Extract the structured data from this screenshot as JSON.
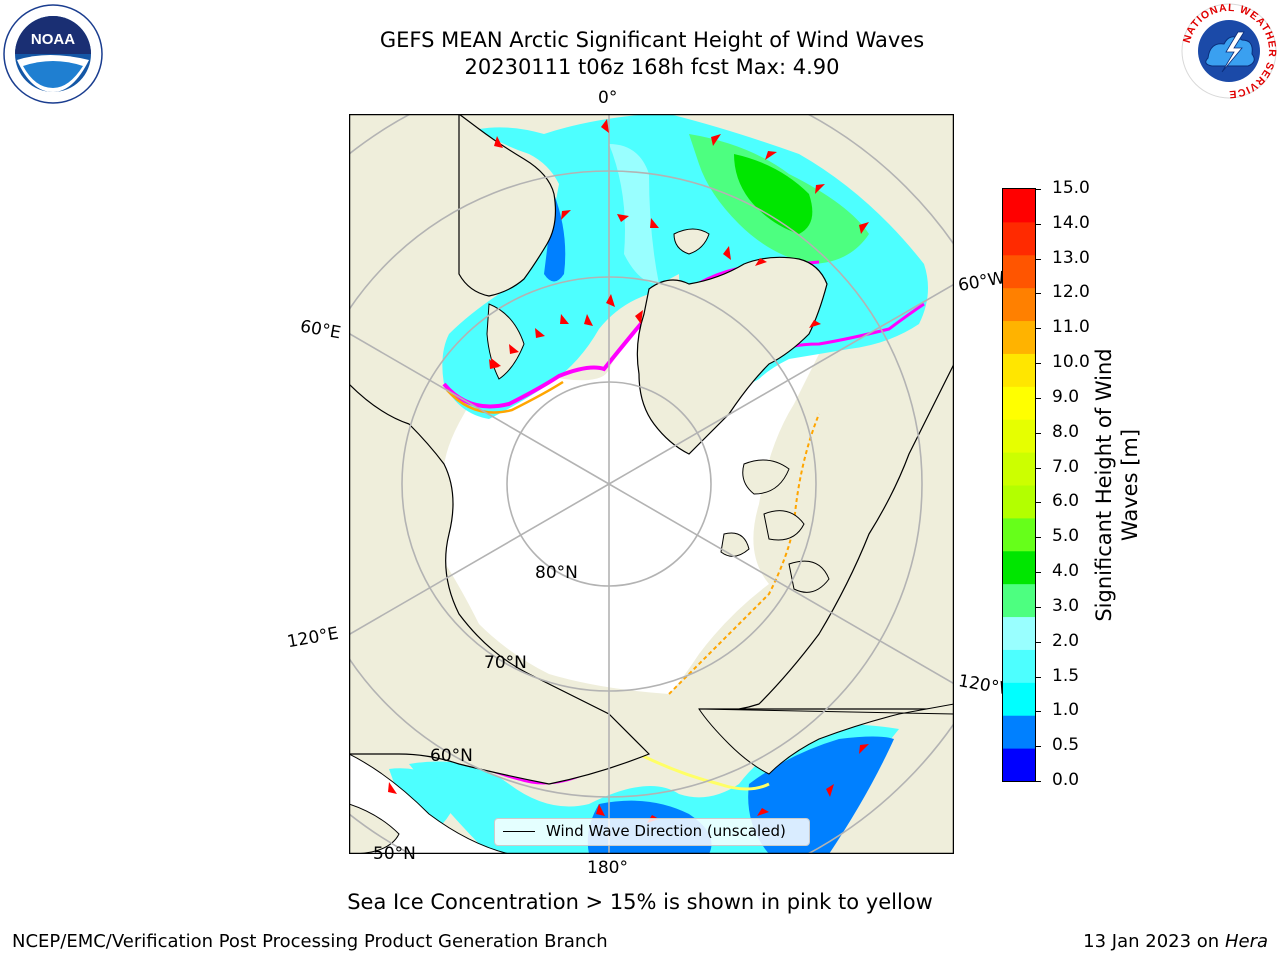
{
  "title": {
    "line1": "GEFS MEAN Arctic Significant Height of Wind Waves",
    "line2": "20230111 t06z 168h fcst   Max: 4.90"
  },
  "logos": {
    "noaa": "NOAA",
    "nws_ring": "NATIONAL WEATHER SERVICE"
  },
  "map": {
    "meridian_labels": [
      "0°",
      "60°E",
      "60°W",
      "120°E",
      "120°W",
      "180°"
    ],
    "parallel_labels": [
      "80°N",
      "70°N",
      "60°N",
      "50°N"
    ],
    "legend": "Wind Wave Direction (unscaled)",
    "colors": {
      "land": "#efeedb",
      "ocean_ice": "#ffffff",
      "grid": "#b3b3b3",
      "arrow": "#ff0000",
      "ice_edge": [
        "#ff00ff",
        "#ff9999",
        "#ffa500",
        "#ffff66"
      ]
    }
  },
  "colorbar": {
    "label": "Significant Height of Wind Waves [m]",
    "ticks": [
      "15.0",
      "14.0",
      "13.0",
      "12.0",
      "11.0",
      "10.0",
      "9.0",
      "8.0",
      "7.0",
      "6.0",
      "5.0",
      "4.0",
      "3.0",
      "2.0",
      "1.5",
      "1.0",
      "0.5",
      "0.0"
    ],
    "colors": [
      "#0000ff",
      "#0080ff",
      "#00ffff",
      "#4dffff",
      "#99ffff",
      "#4dff80",
      "#00e600",
      "#66ff1a",
      "#b3ff00",
      "#ccff00",
      "#e6ff00",
      "#ffff00",
      "#ffe600",
      "#ffb300",
      "#ff8000",
      "#ff5500",
      "#ff2a00",
      "#ff0000"
    ]
  },
  "note": "Sea Ice Concentration > 15% is shown in pink to yellow",
  "footer": {
    "left": "NCEP/EMC/Verification Post Processing Product Generation Branch",
    "right_prefix": "13 Jan 2023 on ",
    "right_host": "Hera"
  }
}
